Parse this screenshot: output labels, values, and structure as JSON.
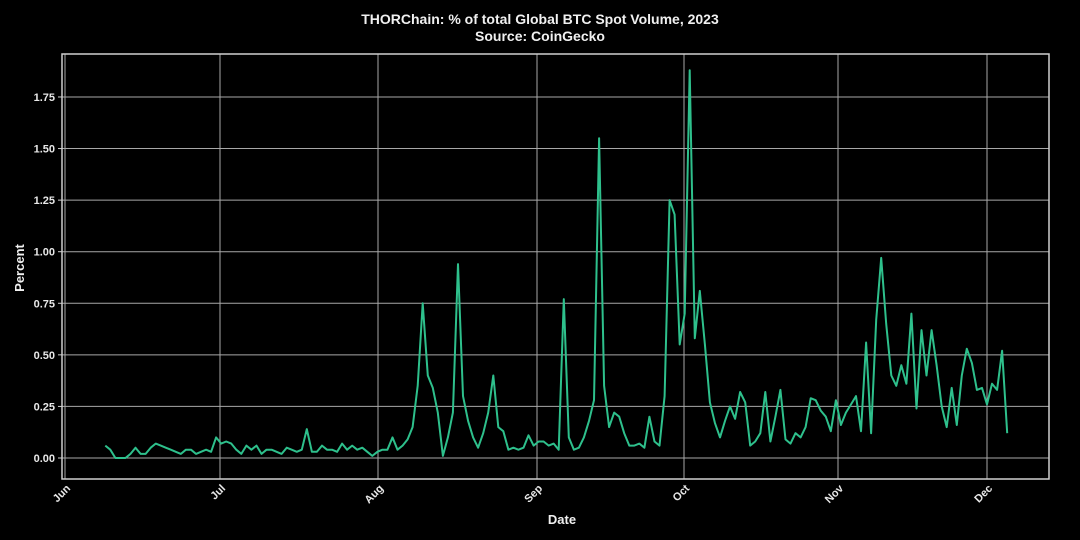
{
  "chart_data": {
    "type": "line",
    "title": "THORChain: % of total Global BTC Spot Volume, 2023",
    "subtitle": "Source: CoinGecko",
    "xlabel": "Date",
    "ylabel": "Percent",
    "ylim": [
      -0.09,
      1.93
    ],
    "yticks": [
      0.0,
      0.25,
      0.5,
      0.75,
      1.0,
      1.25,
      1.5,
      1.75
    ],
    "ytick_labels": [
      "0.00",
      "0.25",
      "0.50",
      "0.75",
      "1.00",
      "1.25",
      "1.50",
      "1.75"
    ],
    "xticks": [
      "Jun",
      "Jul",
      "Aug",
      "Sep",
      "Oct",
      "Nov",
      "Dec"
    ],
    "grid": true,
    "legend": null,
    "line_color": "#2ec08c",
    "background": "#000000",
    "series": [
      {
        "name": "THORChain % of BTC spot volume",
        "start_date": "2023-06-09",
        "frequency": "daily",
        "values": [
          0.06,
          0.04,
          0.0,
          0.0,
          0.0,
          0.02,
          0.05,
          0.02,
          0.02,
          0.05,
          0.07,
          0.06,
          0.05,
          0.04,
          0.03,
          0.02,
          0.04,
          0.04,
          0.02,
          0.03,
          0.04,
          0.03,
          0.1,
          0.07,
          0.08,
          0.07,
          0.04,
          0.02,
          0.06,
          0.04,
          0.06,
          0.02,
          0.04,
          0.04,
          0.03,
          0.02,
          0.05,
          0.04,
          0.03,
          0.04,
          0.14,
          0.03,
          0.03,
          0.06,
          0.04,
          0.04,
          0.03,
          0.07,
          0.04,
          0.06,
          0.04,
          0.05,
          0.03,
          0.01,
          0.03,
          0.04,
          0.04,
          0.1,
          0.04,
          0.06,
          0.09,
          0.15,
          0.35,
          0.75,
          0.4,
          0.34,
          0.22,
          0.01,
          0.1,
          0.22,
          0.94,
          0.3,
          0.18,
          0.1,
          0.05,
          0.12,
          0.22,
          0.4,
          0.15,
          0.13,
          0.04,
          0.05,
          0.04,
          0.05,
          0.11,
          0.06,
          0.08,
          0.08,
          0.06,
          0.07,
          0.04,
          0.77,
          0.1,
          0.04,
          0.05,
          0.1,
          0.18,
          0.28,
          1.55,
          0.35,
          0.15,
          0.22,
          0.2,
          0.12,
          0.06,
          0.06,
          0.07,
          0.05,
          0.2,
          0.08,
          0.06,
          0.3,
          1.25,
          1.18,
          0.55,
          0.7,
          1.88,
          0.58,
          0.81,
          0.55,
          0.27,
          0.17,
          0.1,
          0.18,
          0.25,
          0.19,
          0.32,
          0.27,
          0.06,
          0.08,
          0.12,
          0.32,
          0.08,
          0.2,
          0.33,
          0.09,
          0.07,
          0.12,
          0.1,
          0.15,
          0.29,
          0.28,
          0.23,
          0.2,
          0.13,
          0.28,
          0.16,
          0.22,
          0.26,
          0.3,
          0.13,
          0.56,
          0.12,
          0.67,
          0.97,
          0.65,
          0.4,
          0.35,
          0.45,
          0.36,
          0.7,
          0.24,
          0.62,
          0.4,
          0.62,
          0.45,
          0.25,
          0.15,
          0.34,
          0.16,
          0.4,
          0.53,
          0.46,
          0.33,
          0.34,
          0.26,
          0.36,
          0.33,
          0.52,
          0.12
        ]
      }
    ]
  }
}
